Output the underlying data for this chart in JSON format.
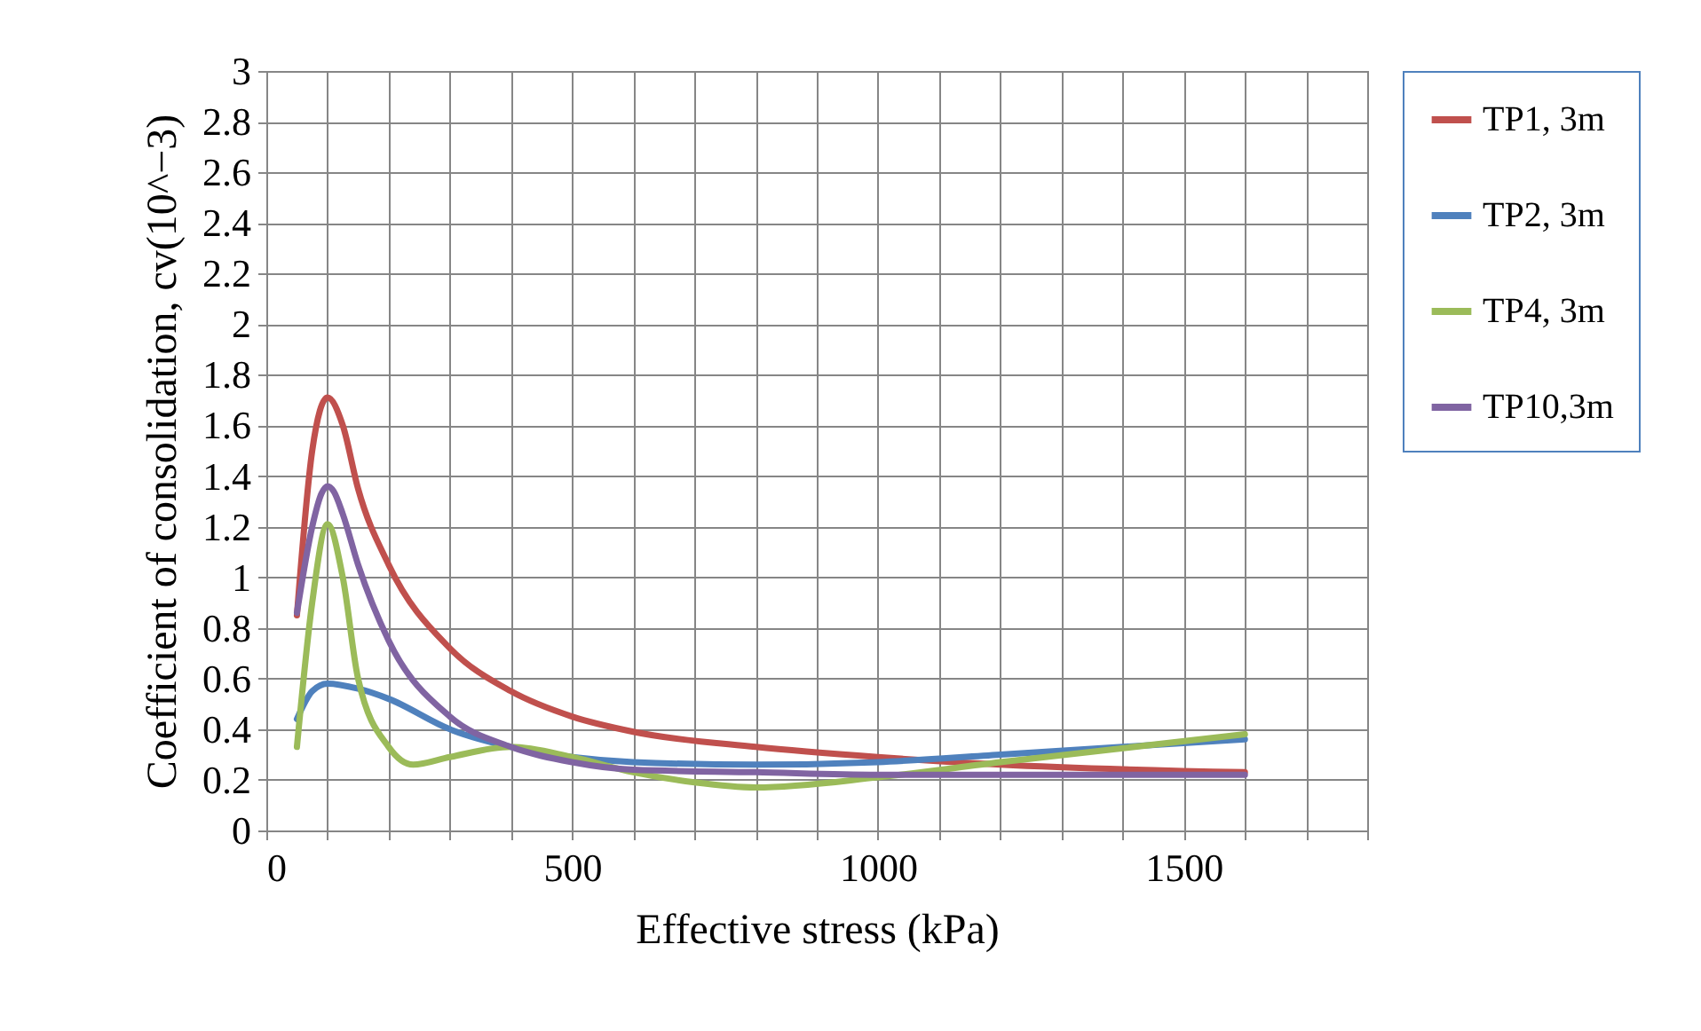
{
  "chart_data": {
    "type": "line",
    "xlabel": "Effective stress  (kPa)",
    "ylabel": "Coefficient of consolidation, cv(10^−3)",
    "xlim": [
      0,
      1800
    ],
    "xticks": [
      0,
      {
        "value": 100,
        "label": null
      },
      {
        "value": 200,
        "label": null
      },
      {
        "value": 300,
        "label": null
      },
      {
        "value": 400,
        "label": null
      },
      500,
      {
        "value": 600,
        "label": null
      },
      {
        "value": 700,
        "label": null
      },
      {
        "value": 800,
        "label": null
      },
      {
        "value": 900,
        "label": null
      },
      1000,
      {
        "value": 1100,
        "label": null
      },
      {
        "value": 1200,
        "label": null
      },
      {
        "value": 1300,
        "label": null
      },
      {
        "value": 1400,
        "label": null
      },
      1500,
      {
        "value": 1600,
        "label": null
      },
      {
        "value": 1700,
        "label": null
      },
      {
        "value": 1800,
        "label": null
      }
    ],
    "ylim": [
      0,
      3
    ],
    "yticks": [
      0,
      0.2,
      0.4,
      0.6,
      0.8,
      1,
      1.2,
      1.4,
      1.6,
      1.8,
      2,
      2.2,
      2.4,
      2.6,
      2.8,
      3
    ],
    "grid": true,
    "legend": "right",
    "marker": "none",
    "line_style": "solid",
    "series": [
      {
        "name": "TP1, 3m",
        "color": "#c0504d",
        "x": [
          50,
          75,
          100,
          125,
          150,
          200,
          300,
          400,
          500,
          600,
          800,
          1000,
          1200,
          1600
        ],
        "values": [
          0.85,
          1.5,
          1.71,
          1.6,
          1.35,
          1.05,
          0.72,
          0.55,
          0.45,
          0.39,
          0.33,
          0.29,
          0.26,
          0.23
        ]
      },
      {
        "name": "TP2, 3m",
        "color": "#4f81bd",
        "x": [
          50,
          75,
          100,
          150,
          200,
          300,
          400,
          500,
          600,
          800,
          1000,
          1200,
          1600
        ],
        "values": [
          0.44,
          0.55,
          0.58,
          0.56,
          0.52,
          0.4,
          0.33,
          0.29,
          0.27,
          0.26,
          0.27,
          0.3,
          0.36
        ]
      },
      {
        "name": "TP4, 3m",
        "color": "#9bbb59",
        "x": [
          50,
          75,
          100,
          125,
          150,
          200,
          240,
          300,
          400,
          500,
          600,
          700,
          800,
          1000,
          1200,
          1600
        ],
        "values": [
          0.33,
          0.9,
          1.21,
          1.0,
          0.6,
          0.33,
          0.26,
          0.29,
          0.33,
          0.29,
          0.23,
          0.19,
          0.17,
          0.21,
          0.27,
          0.38
        ]
      },
      {
        "name": "TP10,3m",
        "color": "#8064a2",
        "x": [
          50,
          75,
          90,
          100,
          110,
          125,
          150,
          200,
          300,
          400,
          500,
          600,
          800,
          1000,
          1600
        ],
        "values": [
          0.86,
          1.2,
          1.33,
          1.36,
          1.34,
          1.25,
          1.05,
          0.75,
          0.45,
          0.33,
          0.27,
          0.24,
          0.23,
          0.22,
          0.22
        ]
      }
    ]
  }
}
